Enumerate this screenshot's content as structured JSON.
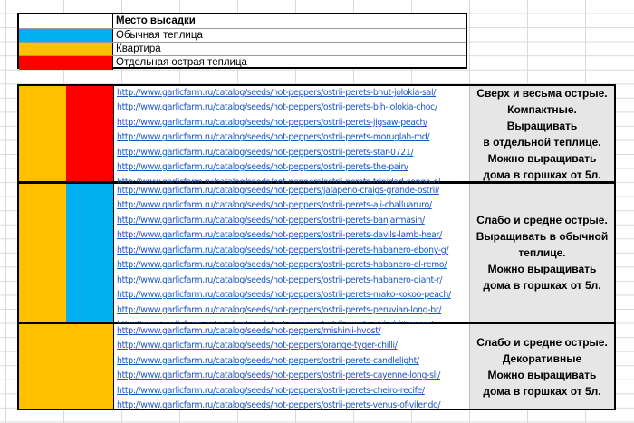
{
  "legend": {
    "header": "Место высадки",
    "items": [
      {
        "label": "Обычная теплица",
        "color": "#00b0f0"
      },
      {
        "label": "Квартира",
        "color": "#ffc000"
      },
      {
        "label": "Отдельная острая теплица",
        "color": "#ff0000"
      }
    ]
  },
  "colors": {
    "yellow": "#ffc000",
    "blue": "#00b0f0",
    "red": "#ff0000",
    "note_bg": "#e6e6e6",
    "link": "#1a56c4"
  },
  "groups": [
    {
      "col_a_color": "#ffc000",
      "col_b_color": "#ff0000",
      "note": "Сверх и весьма острые.\nКомпактные.\nВыращивать\nв отдельной теплице.\nМожно выращивать\nдома в горшках от 5л.",
      "links": [
        "http://www.garlicfarm.ru/catalog/seeds/hot-peppers/ostrii-perets-bhut-jolokia-sal/",
        "http://www.garlicfarm.ru/catalog/seeds/hot-peppers/ostrii-perets-bih-jolokia-choc/",
        "http://www.garlicfarm.ru/catalog/seeds/hot-peppers/ostrii-perets-jigsaw-peach/",
        "http://www.garlicfarm.ru/catalog/seeds/hot-peppers/ostrii-perets-moruglah-md/",
        "http://www.garlicfarm.ru/catalog/seeds/hot-peppers/ostrii-perets-star-0721/",
        "http://www.garlicfarm.ru/catalog/seeds/hot-peppers/ostrii-perets-the-pain/",
        "http://www.garlicfarm.ru/catalog/seeds/hot-peppers/ostrii-perets-trinidad-congo-c/"
      ]
    },
    {
      "col_a_color": "#ffc000",
      "col_b_color": "#00b0f0",
      "note": "Слабо и средне острые.\nВыращивать в обычной\nтеплице.\nМожно выращивать\nдома в горшках от 5л.",
      "links": [
        "http://www.garlicfarm.ru/catalog/seeds/hot-peppers/jalapeno-craigs-grande-ostrii/",
        "http://www.garlicfarm.ru/catalog/seeds/hot-peppers/ostrii-perets-aji-challuaruro/",
        "http://www.garlicfarm.ru/catalog/seeds/hot-peppers/ostrii-perets-banjarmasin/",
        "http://www.garlicfarm.ru/catalog/seeds/hot-peppers/ostrii-perets-davils-lamb-hear/",
        "http://www.garlicfarm.ru/catalog/seeds/hot-peppers/ostrii-perets-habanero-ebony-g/",
        "http://www.garlicfarm.ru/catalog/seeds/hot-peppers/ostrii-perets-habanero-el-remo/",
        "http://www.garlicfarm.ru/catalog/seeds/hot-peppers/ostrii-perets-habanero-giant-r/",
        "http://www.garlicfarm.ru/catalog/seeds/hot-peppers/ostrii-perets-mako-kokoo-peach/",
        "http://www.garlicfarm.ru/catalog/seeds/hot-peppers/ostrii-perets-peruvian-long-br/",
        "http://www.garlicfarm.ru/catalog/seeds/hot-peppers/ostrii-perets-piri-piri-tanzan/"
      ]
    },
    {
      "col_a_color": "#ffc000",
      "col_b_color": "#ffc000",
      "note": "Слабо и средне острые.\nДекоративные\nМожно выращивать\nдома в горшках от 5л.",
      "links": [
        "http://www.garlicfarm.ru/catalog/seeds/hot-peppers/mishinii-hvost/",
        "http://www.garlicfarm.ru/catalog/seeds/hot-peppers/orange-tyger-chilli/",
        "http://www.garlicfarm.ru/catalog/seeds/hot-peppers/ostrii-perets-candlelight/",
        "http://www.garlicfarm.ru/catalog/seeds/hot-peppers/ostrii-perets-cayenne-long-sli/",
        "http://www.garlicfarm.ru/catalog/seeds/hot-peppers/ostrii-perets-cheiro-recife/",
        "http://www.garlicfarm.ru/catalog/seeds/hot-peppers/ostrii-perets-venus-of-vilendo/"
      ]
    }
  ]
}
